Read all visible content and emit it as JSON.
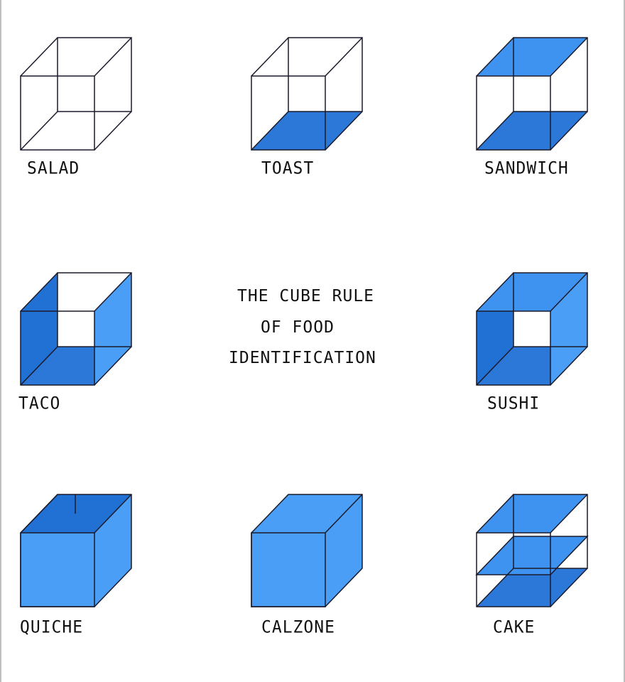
{
  "title": {
    "line1": "THE CUBE RULE",
    "line2": "OF FOOD",
    "line3": "IDENTIFICATION"
  },
  "colors": {
    "top_face": "#3f93f0",
    "bottom_face": "#2b78d9",
    "side_face": "#4a9ef5",
    "back_face": "#2170d4",
    "front_face": "#4a9ef5",
    "edge": "#1a1a2a",
    "background": "#ffffff"
  },
  "cubes": [
    {
      "label": "SALAD",
      "faces": []
    },
    {
      "label": "TOAST",
      "faces": [
        "bottom"
      ]
    },
    {
      "label": "SANDWICH",
      "faces": [
        "top",
        "bottom"
      ]
    },
    {
      "label": "TACO",
      "faces": [
        "left",
        "bottom",
        "right"
      ]
    },
    {
      "label": "SUSHI",
      "faces": [
        "top",
        "left",
        "bottom",
        "right"
      ]
    },
    {
      "label": "QUICHE",
      "faces": [
        "left",
        "bottom",
        "right",
        "front",
        "back"
      ]
    },
    {
      "label": "CALZONE",
      "faces": [
        "top",
        "left",
        "bottom",
        "right",
        "front",
        "back"
      ]
    },
    {
      "label": "CAKE",
      "faces": [
        "top",
        "middle",
        "bottom"
      ]
    }
  ]
}
